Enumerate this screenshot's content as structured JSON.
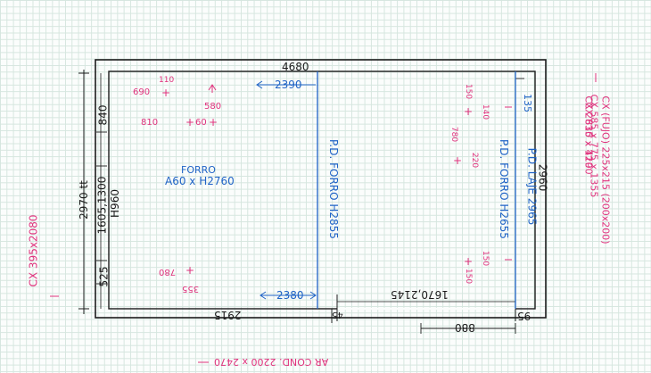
{
  "dims": {
    "top_width": "4680",
    "right_height": "2960",
    "left_height": "2970 tt",
    "left_h": "H960",
    "left_mid": "1605,1300",
    "left_top": "840",
    "left_bottom": "525",
    "bottom_left": "2915",
    "bottom_small": "45",
    "bottom_right": "95",
    "bottom_outside": "880",
    "opening_bottom": "1670,2145"
  },
  "blue": {
    "top_arrow": "2390",
    "bottom_arrow": "2380",
    "forro_label": "FORRO",
    "forro_spec": "A60 x H2760",
    "pd_forro_left": "P.D. FORRO H2855",
    "pd_forro_right": "P.D. FORRO H2655",
    "pd_laje": "P.D. LAJE 2965",
    "right_135": "135"
  },
  "pink": {
    "n110": "110",
    "n690": "690",
    "n580": "580",
    "n810": "810",
    "n60": "60",
    "n780_left": "780",
    "n355": "355",
    "n150a": "150",
    "n140": "140",
    "n780_right": "780",
    "n220": "220",
    "n150b": "150",
    "n150c": "150",
    "left_cx": "CX 395x2080",
    "bottom_ar": "AR COND. 2200 x 2470",
    "right_list": [
      "CX (FUJO) 225x215 (200x200)",
      "CX 585 x 775 x 1355",
      "CX 635 x 420",
      "CX 2810 x 1190"
    ]
  },
  "colors": {
    "ink": "#1b1b1b",
    "blue": "#1f63c6",
    "pink": "#e0327d",
    "grid": "#d6e6df"
  }
}
